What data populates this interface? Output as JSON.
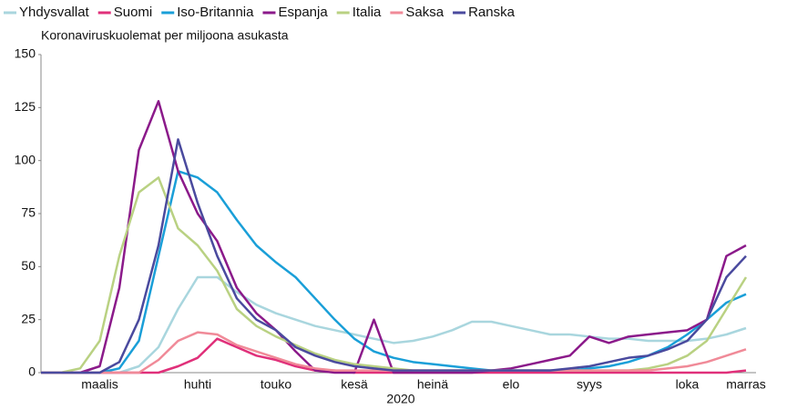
{
  "chart_data": {
    "type": "line",
    "subtitle": "Koronaviruskuolemat per miljoona asukasta",
    "xlabel": "2020",
    "categories": [
      null,
      null,
      null,
      "maalis",
      null,
      null,
      null,
      null,
      "huhti",
      null,
      null,
      null,
      "touko",
      null,
      null,
      null,
      "kesä",
      null,
      null,
      null,
      "heinä",
      null,
      null,
      null,
      "elo",
      null,
      null,
      null,
      "syys",
      null,
      null,
      null,
      null,
      "loka",
      null,
      null,
      "marras"
    ],
    "ylim": [
      0,
      150
    ],
    "yticks": [
      0,
      25,
      50,
      75,
      100,
      125,
      150
    ],
    "legend": "top",
    "series": [
      {
        "name": "Yhdysvallat",
        "color": "#a9d6de",
        "values": [
          0,
          0,
          0,
          0,
          0,
          3,
          12,
          30,
          45,
          45,
          38,
          32,
          28,
          25,
          22,
          20,
          18,
          16,
          14,
          15,
          17,
          20,
          24,
          24,
          22,
          20,
          18,
          18,
          17,
          16,
          16,
          15,
          15,
          15,
          16,
          18,
          21
        ]
      },
      {
        "name": "Suomi",
        "color": "#e0307a",
        "values": [
          0,
          0,
          0,
          0,
          0,
          0,
          0,
          3,
          7,
          16,
          12,
          8,
          6,
          3,
          1,
          1,
          0,
          0,
          0,
          0,
          0,
          0,
          0,
          0,
          0,
          0,
          0,
          0,
          0,
          0,
          0,
          0,
          0,
          0,
          0,
          0,
          1
        ]
      },
      {
        "name": "Iso-Britannia",
        "color": "#1a9fd8",
        "values": [
          0,
          0,
          0,
          0,
          2,
          15,
          55,
          95,
          92,
          85,
          72,
          60,
          52,
          45,
          35,
          25,
          16,
          10,
          7,
          5,
          4,
          3,
          2,
          1,
          1,
          1,
          1,
          1,
          2,
          3,
          5,
          8,
          12,
          18,
          25,
          33,
          37
        ]
      },
      {
        "name": "Espanja",
        "color": "#8b1a8a",
        "values": [
          0,
          0,
          0,
          3,
          40,
          105,
          128,
          95,
          75,
          62,
          40,
          28,
          20,
          10,
          1,
          0,
          0,
          25,
          0,
          0,
          0,
          0,
          0,
          1,
          2,
          4,
          6,
          8,
          17,
          14,
          17,
          18,
          19,
          20,
          25,
          55,
          60
        ]
      },
      {
        "name": "Italia",
        "color": "#b9d182",
        "values": [
          0,
          0,
          2,
          15,
          55,
          85,
          92,
          68,
          60,
          48,
          30,
          22,
          17,
          13,
          9,
          6,
          4,
          3,
          2,
          1,
          1,
          1,
          1,
          1,
          1,
          1,
          1,
          1,
          1,
          1,
          1,
          2,
          4,
          8,
          15,
          30,
          45
        ]
      },
      {
        "name": "Saksa",
        "color": "#f08a98",
        "values": [
          0,
          0,
          0,
          0,
          0,
          0,
          6,
          15,
          19,
          18,
          13,
          10,
          7,
          4,
          2,
          1,
          1,
          1,
          1,
          1,
          1,
          1,
          1,
          1,
          1,
          1,
          1,
          1,
          1,
          1,
          1,
          1,
          2,
          3,
          5,
          8,
          11
        ]
      },
      {
        "name": "Ranska",
        "color": "#4a4a9e",
        "values": [
          0,
          0,
          0,
          0,
          5,
          25,
          60,
          110,
          80,
          55,
          35,
          25,
          20,
          12,
          8,
          5,
          3,
          2,
          1,
          1,
          1,
          1,
          1,
          1,
          1,
          1,
          1,
          2,
          3,
          5,
          7,
          8,
          11,
          15,
          25,
          45,
          55
        ]
      }
    ]
  }
}
